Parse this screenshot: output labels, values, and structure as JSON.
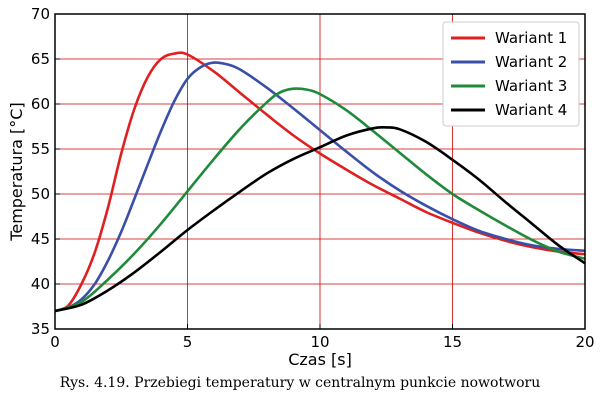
{
  "caption": "Rys. 4.19. Przebiegi temperatury w centralnym punkcie nowotworu",
  "chart_data": {
    "type": "line",
    "title": "",
    "xlabel": "Czas [s]",
    "ylabel": "Temperatura [°C]",
    "xlim": [
      0,
      20
    ],
    "ylim": [
      35,
      70
    ],
    "xticks": [
      0,
      5,
      10,
      15,
      20
    ],
    "yticks": [
      35,
      40,
      45,
      50,
      55,
      60,
      65,
      70
    ],
    "grid": true,
    "grid_color": "#cc0000",
    "legend_position": "top-right",
    "series": [
      {
        "name": "Wariant 1",
        "color": "#e02020",
        "x": [
          0,
          0.5,
          1,
          1.5,
          2,
          2.5,
          3,
          3.5,
          4,
          4.5,
          5,
          6,
          7,
          8,
          9,
          10,
          11,
          12,
          13,
          14,
          15,
          16,
          17,
          18,
          19,
          20
        ],
        "y": [
          37,
          37.6,
          40,
          43.5,
          48.5,
          54.5,
          59.5,
          63,
          65,
          65.6,
          65.5,
          63.6,
          61.2,
          58.8,
          56.5,
          54.5,
          52.7,
          51,
          49.5,
          48,
          46.8,
          45.7,
          44.8,
          44.1,
          43.6,
          43.3
        ]
      },
      {
        "name": "Wariant 2",
        "color": "#3a4fa8",
        "x": [
          0,
          0.5,
          1,
          1.5,
          2,
          2.5,
          3,
          3.5,
          4,
          4.5,
          5,
          5.5,
          6,
          6.5,
          7,
          8,
          9,
          10,
          11,
          12,
          13,
          14,
          15,
          16,
          17,
          18,
          19,
          20
        ],
        "y": [
          37,
          37.4,
          38.3,
          40,
          42.6,
          45.8,
          49.5,
          53.3,
          57,
          60.3,
          62.8,
          64.1,
          64.6,
          64.4,
          63.8,
          61.8,
          59.5,
          57.1,
          54.7,
          52.4,
          50.4,
          48.7,
          47.2,
          45.9,
          45,
          44.3,
          43.9,
          43.7
        ]
      },
      {
        "name": "Wariant 3",
        "color": "#1f8a3a",
        "x": [
          0,
          1,
          2,
          3,
          4,
          5,
          6,
          7,
          8,
          8.5,
          9,
          9.5,
          10,
          11,
          12,
          13,
          14,
          15,
          16,
          17,
          18,
          19,
          20
        ],
        "y": [
          37,
          38,
          40.5,
          43.4,
          46.7,
          50.3,
          53.9,
          57.3,
          60.2,
          61.3,
          61.7,
          61.6,
          61.1,
          59.3,
          57,
          54.6,
          52.2,
          50,
          48.2,
          46.5,
          44.9,
          43.6,
          42.8
        ]
      },
      {
        "name": "Wariant 4",
        "color": "#000000",
        "x": [
          0,
          1,
          2,
          3,
          4,
          5,
          6,
          7,
          8,
          9,
          10,
          11,
          12,
          12.5,
          13,
          14,
          15,
          16,
          17,
          18,
          19,
          20
        ],
        "y": [
          37,
          37.7,
          39.3,
          41.3,
          43.6,
          46,
          48.2,
          50.3,
          52.3,
          53.9,
          55.2,
          56.5,
          57.3,
          57.4,
          57.2,
          55.8,
          53.8,
          51.6,
          49.1,
          46.7,
          44.3,
          42.3
        ]
      }
    ]
  }
}
